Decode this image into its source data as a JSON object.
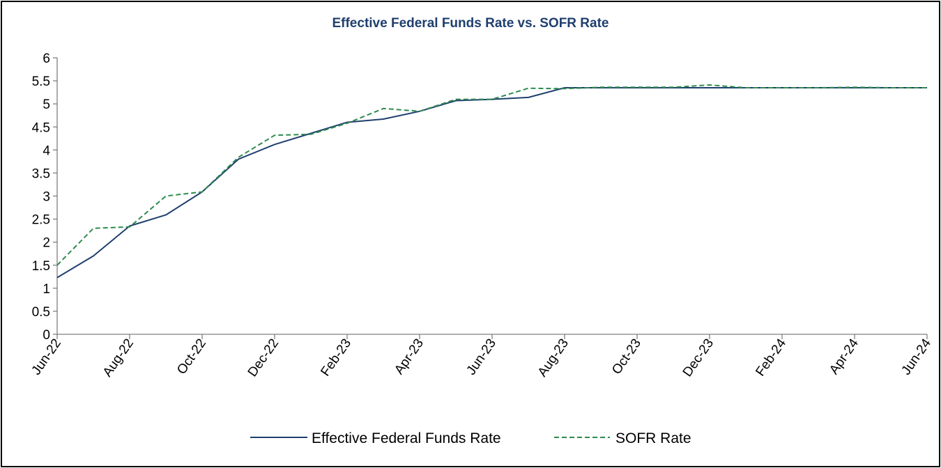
{
  "chart_data": {
    "type": "line",
    "title": "Effective Federal Funds Rate vs. SOFR Rate",
    "xlabel": "",
    "ylabel": "",
    "ylim": [
      0,
      6
    ],
    "yticks": [
      "0",
      "0.5",
      "1",
      "1.5",
      "2",
      "2.5",
      "3",
      "3.5",
      "4",
      "4.5",
      "5",
      "5.5",
      "6"
    ],
    "categories": [
      "Jun-22",
      "Jul-22",
      "Aug-22",
      "Sep-22",
      "Oct-22",
      "Nov-22",
      "Dec-22",
      "Jan-23",
      "Feb-23",
      "Mar-23",
      "Apr-23",
      "May-23",
      "Jun-23",
      "Jul-23",
      "Aug-23",
      "Sep-23",
      "Oct-23",
      "Nov-23",
      "Dec-23",
      "Jan-24",
      "Feb-24",
      "Mar-24",
      "Apr-24",
      "May-24",
      "Jun-24"
    ],
    "xticks": [
      "Jun-22",
      "Aug-22",
      "Oct-22",
      "Dec-22",
      "Feb-23",
      "Apr-23",
      "Jun-23",
      "Aug-23",
      "Oct-23",
      "Dec-23",
      "Feb-24",
      "Apr-24",
      "Jun-24"
    ],
    "series": [
      {
        "name": "Effective Federal Funds Rate",
        "color": "#1f3f6e",
        "dash": "solid",
        "values": [
          1.23,
          1.7,
          2.35,
          2.59,
          3.09,
          3.8,
          4.12,
          4.36,
          4.6,
          4.67,
          4.84,
          5.07,
          5.1,
          5.14,
          5.35,
          5.35,
          5.35,
          5.35,
          5.35,
          5.35,
          5.35,
          5.35,
          5.35,
          5.35,
          5.35
        ]
      },
      {
        "name": "SOFR Rate",
        "color": "#2e8b4e",
        "dash": "dashed",
        "values": [
          1.5,
          2.3,
          2.33,
          3.0,
          3.09,
          3.84,
          4.32,
          4.34,
          4.58,
          4.9,
          4.84,
          5.1,
          5.1,
          5.34,
          5.33,
          5.36,
          5.36,
          5.36,
          5.41,
          5.35,
          5.35,
          5.35,
          5.36,
          5.35,
          5.35
        ]
      }
    ],
    "grid": false,
    "legend": "bottom"
  }
}
